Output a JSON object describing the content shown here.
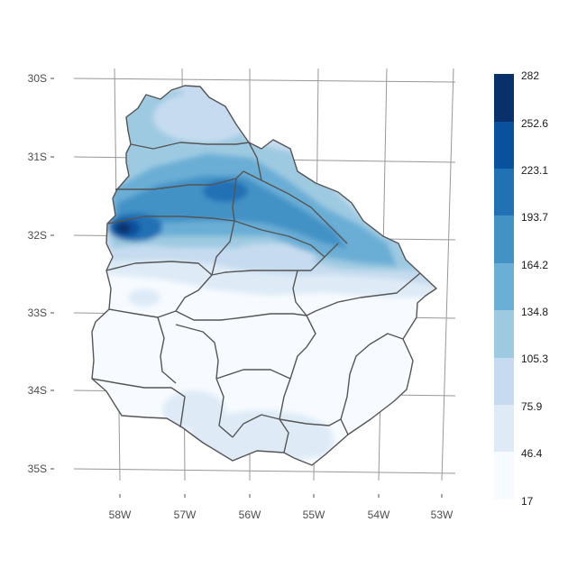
{
  "chart_data": {
    "type": "heatmap",
    "title": "",
    "xlabel": "",
    "ylabel": "",
    "x_ticks": [
      "58W",
      "57W",
      "56W",
      "55W",
      "54W",
      "53W"
    ],
    "y_ticks": [
      "30S",
      "31S",
      "32S",
      "33S",
      "34S",
      "35S"
    ],
    "legend": {
      "position": "right",
      "breaks": [
        "282",
        "252.6",
        "223.1",
        "193.7",
        "164.2",
        "134.8",
        "105.3",
        "75.9",
        "46.4",
        "17"
      ],
      "colors": [
        "#08306b",
        "#08519c",
        "#2171b5",
        "#4292c6",
        "#6baed6",
        "#9ecae1",
        "#c6dbef",
        "#deebf7",
        "#f7fbff"
      ]
    },
    "grid": true,
    "range": {
      "min": 17,
      "max": 282
    }
  },
  "colors": {
    "border": "#555555",
    "graticule": "#8c8c8c",
    "tick_text": "#4d4d4d"
  }
}
